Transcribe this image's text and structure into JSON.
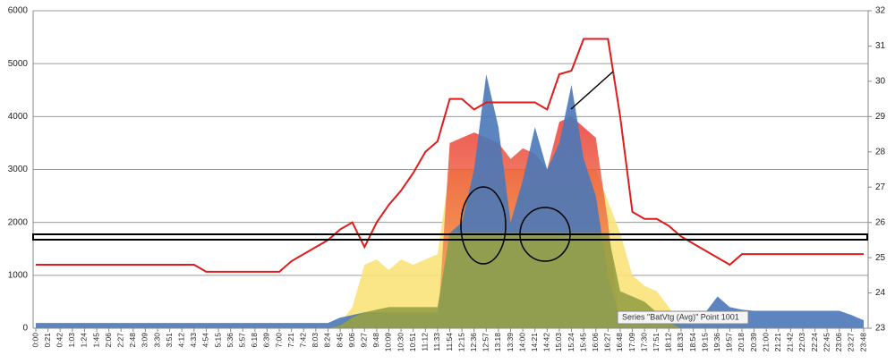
{
  "chart_data": {
    "type": "area",
    "categories": [
      "0:00",
      "0:21",
      "0:42",
      "1:03",
      "1:24",
      "1:45",
      "2:06",
      "2:27",
      "2:48",
      "3:09",
      "3:30",
      "3:51",
      "4:12",
      "4:33",
      "4:54",
      "5:15",
      "5:36",
      "5:57",
      "6:18",
      "6:39",
      "7:00",
      "7:21",
      "7:42",
      "8:03",
      "8:24",
      "8:45",
      "9:06",
      "9:27",
      "9:48",
      "10:09",
      "10:30",
      "10:51",
      "11:12",
      "11:33",
      "11:54",
      "12:15",
      "12:36",
      "12:57",
      "13:18",
      "13:39",
      "14:00",
      "14:21",
      "14:42",
      "15:03",
      "15:24",
      "15:45",
      "16:06",
      "16:27",
      "16:48",
      "17:09",
      "17:30",
      "17:51",
      "18:12",
      "18:33",
      "18:54",
      "19:15",
      "19:36",
      "19:57",
      "20:18",
      "20:39",
      "21:00",
      "21:21",
      "21:42",
      "22:03",
      "22:24",
      "22:45",
      "23:06",
      "23:27",
      "23:48"
    ],
    "series": [
      {
        "color": "#f9e27a",
        "values": [
          0,
          0,
          0,
          0,
          0,
          0,
          0,
          0,
          0,
          0,
          0,
          0,
          0,
          0,
          0,
          0,
          0,
          0,
          0,
          0,
          0,
          0,
          0,
          0,
          0,
          100,
          400,
          1200,
          1300,
          1100,
          1300,
          1200,
          1300,
          1400,
          3000,
          3000,
          3000,
          3000,
          3000,
          3000,
          3000,
          3000,
          3000,
          3000,
          3000,
          3000,
          3000,
          2400,
          1800,
          1000,
          800,
          700,
          400,
          0,
          0,
          0,
          0,
          0,
          0,
          0,
          0,
          0,
          0,
          0,
          0,
          0,
          0,
          0,
          0
        ]
      },
      {
        "color": "#ec5a47",
        "values": [
          0,
          0,
          0,
          0,
          0,
          0,
          0,
          0,
          0,
          0,
          0,
          0,
          0,
          0,
          0,
          0,
          0,
          0,
          0,
          0,
          0,
          0,
          0,
          0,
          0,
          0,
          0,
          0,
          0,
          0,
          0,
          0,
          0,
          0,
          3500,
          3600,
          3700,
          3600,
          3500,
          3200,
          3400,
          3300,
          3000,
          3900,
          4000,
          3800,
          3600,
          2000,
          0,
          0,
          0,
          0,
          0,
          0,
          0,
          0,
          0,
          0,
          0,
          0,
          0,
          0,
          0,
          0,
          0,
          0,
          0,
          0,
          0
        ]
      },
      {
        "color": "#4a78b8",
        "values": [
          100,
          100,
          100,
          100,
          100,
          100,
          100,
          100,
          100,
          100,
          100,
          100,
          100,
          100,
          100,
          100,
          100,
          100,
          100,
          100,
          100,
          100,
          100,
          100,
          100,
          200,
          250,
          300,
          300,
          300,
          300,
          300,
          300,
          300,
          1800,
          2000,
          3000,
          4800,
          3800,
          2000,
          2800,
          3800,
          3000,
          3500,
          4600,
          3200,
          2500,
          1000,
          150,
          150,
          150,
          150,
          150,
          150,
          200,
          300,
          600,
          400,
          350,
          330,
          330,
          330,
          330,
          330,
          330,
          330,
          330,
          250,
          150
        ]
      },
      {
        "color": "#97a145",
        "values": [
          0,
          0,
          0,
          0,
          0,
          0,
          0,
          0,
          0,
          0,
          0,
          0,
          0,
          0,
          0,
          0,
          0,
          0,
          0,
          0,
          0,
          0,
          0,
          0,
          0,
          50,
          200,
          300,
          350,
          400,
          400,
          400,
          400,
          400,
          1800,
          1800,
          1800,
          1800,
          1800,
          1800,
          1800,
          1800,
          1800,
          1800,
          1800,
          1800,
          1800,
          1800,
          700,
          600,
          500,
          300,
          100,
          0,
          0,
          0,
          0,
          0,
          0,
          0,
          0,
          0,
          0,
          0,
          0,
          0,
          0,
          0,
          0
        ]
      },
      {
        "color": "#e01b1b",
        "axis": "y2",
        "values": [
          24.8,
          24.8,
          24.8,
          24.8,
          24.8,
          24.8,
          24.8,
          24.8,
          24.8,
          24.8,
          24.8,
          24.8,
          24.8,
          24.8,
          24.6,
          24.6,
          24.6,
          24.6,
          24.6,
          24.6,
          24.6,
          24.9,
          25.1,
          25.3,
          25.5,
          25.8,
          26.0,
          25.3,
          26.0,
          26.5,
          26.9,
          27.4,
          28.0,
          28.3,
          29.5,
          29.5,
          29.2,
          29.4,
          29.4,
          29.4,
          29.4,
          29.4,
          29.2,
          30.2,
          30.3,
          31.2,
          31.2,
          31.2,
          29.0,
          26.3,
          26.1,
          26.1,
          25.9,
          25.6,
          25.4,
          25.2,
          25.0,
          24.8,
          25.1,
          25.1,
          25.1,
          25.1,
          25.1,
          25.1,
          25.1,
          25.1,
          25.1,
          25.1,
          25.1
        ]
      }
    ],
    "ylim": [
      0,
      6000
    ],
    "yticks": [
      0,
      1000,
      2000,
      3000,
      4000,
      5000,
      6000
    ],
    "y2lim": [
      23,
      32
    ],
    "y2ticks": [
      23,
      24,
      25,
      26,
      27,
      28,
      29,
      30,
      31,
      32
    ],
    "grid": true,
    "tooltip": "Series \"BatVtg (Avg)\" Point 1001"
  }
}
